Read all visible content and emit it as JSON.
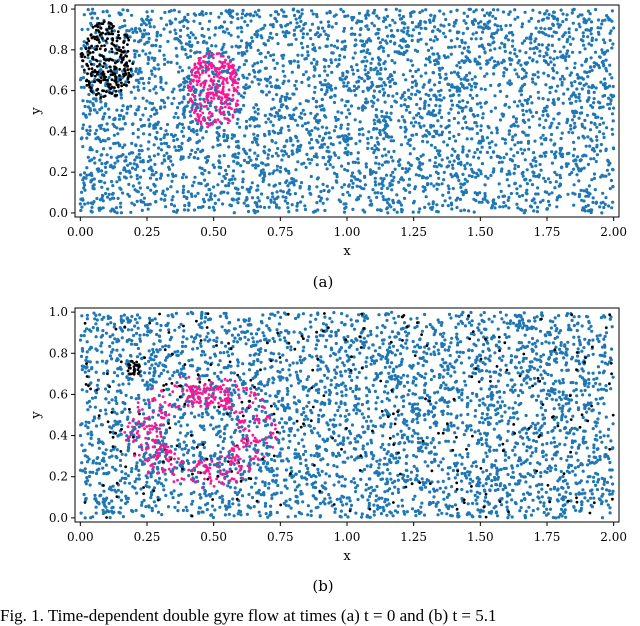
{
  "caption": "Fig. 1.  Time-dependent double gyre flow at times (a) t = 0 and (b) t = 5.1",
  "colors": {
    "bulk": "#1f77b4",
    "black_set": "#000000",
    "magenta_set": "#ff1493"
  },
  "chart_data": [
    {
      "type": "scatter",
      "panel_label": "(a)",
      "xlabel": "x",
      "ylabel": "y",
      "xlim": [
        -0.02,
        2.02
      ],
      "ylim": [
        -0.02,
        1.02
      ],
      "xticks": [
        "0.00",
        "0.25",
        "0.50",
        "0.75",
        "1.00",
        "1.25",
        "1.50",
        "1.75",
        "2.00"
      ],
      "yticks": [
        "0.0",
        "0.2",
        "0.4",
        "0.6",
        "0.8",
        "1.0"
      ],
      "series": [
        {
          "color": "#1f77b4",
          "distribution": "uniform",
          "x_range": [
            0,
            2
          ],
          "y_range": [
            0,
            1
          ]
        },
        {
          "color": "#000000",
          "distribution": "disk",
          "center": [
            0.1,
            0.75
          ],
          "radius": 0.1
        },
        {
          "color": "#ff1493",
          "distribution": "disk",
          "center": [
            0.5,
            0.6
          ],
          "radius": 0.1
        }
      ]
    },
    {
      "type": "scatter",
      "panel_label": "(b)",
      "xlabel": "x",
      "ylabel": "y",
      "xlim": [
        -0.02,
        2.02
      ],
      "ylim": [
        -0.02,
        1.02
      ],
      "xticks": [
        "0.00",
        "0.25",
        "0.50",
        "0.75",
        "1.00",
        "1.25",
        "1.50",
        "1.75",
        "2.00"
      ],
      "yticks": [
        "0.0",
        "0.2",
        "0.4",
        "0.6",
        "0.8",
        "1.0"
      ],
      "series": [
        {
          "color": "#1f77b4",
          "distribution": "uniform",
          "x_range": [
            0,
            2
          ],
          "y_range": [
            0,
            1
          ]
        },
        {
          "color": "#000000",
          "distribution": "dispersed",
          "x_range": [
            0,
            2
          ],
          "y_range": [
            0,
            1
          ],
          "cluster_center": [
            0.2,
            0.72
          ]
        },
        {
          "color": "#ff1493",
          "distribution": "ring",
          "center": [
            0.45,
            0.42
          ],
          "radius_range": [
            0.12,
            0.24
          ]
        }
      ]
    }
  ]
}
